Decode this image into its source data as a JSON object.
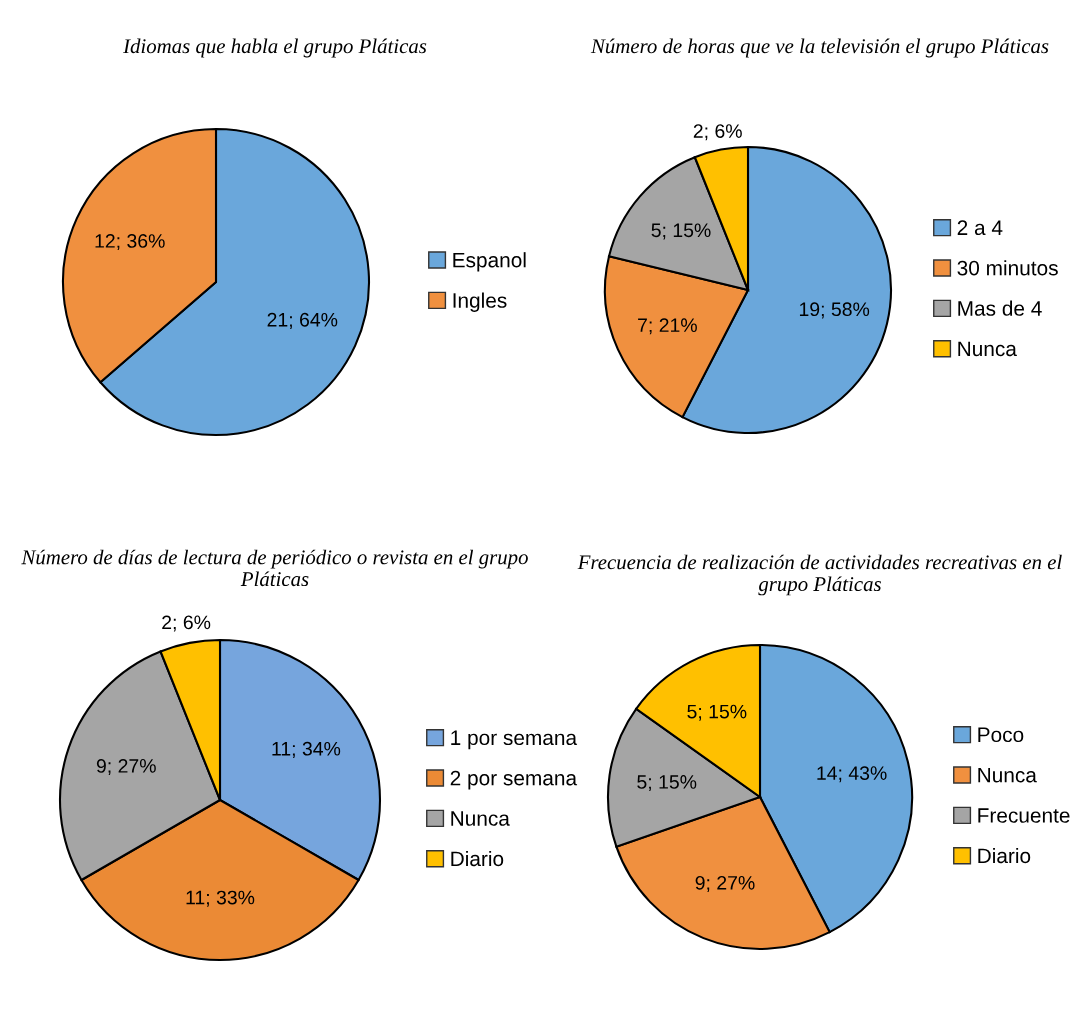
{
  "chart_data": [
    {
      "type": "pie",
      "title": "Idiomas que habla el grupo Pláticas",
      "categories": [
        "Espanol",
        "Ingles"
      ],
      "values": [
        21,
        12
      ],
      "value_labels": [
        "21; 64%",
        "12; 36%"
      ],
      "colors": [
        "#6aa7db",
        "#f0903f"
      ],
      "legend": "right"
    },
    {
      "type": "pie",
      "title": "Número de horas que ve la televisión el grupo Pláticas",
      "categories": [
        "2 a 4",
        "30 minutos",
        "Mas de 4",
        "Nunca"
      ],
      "values": [
        19,
        7,
        5,
        2
      ],
      "value_labels": [
        "19; 58%",
        "7; 21%",
        "5; 15%",
        "2; 6%"
      ],
      "colors": [
        "#6aa7db",
        "#f0903f",
        "#a5a5a5",
        "#ffc000"
      ],
      "legend": "right"
    },
    {
      "type": "pie",
      "title": "Número de días de lectura de periódico o revista en el grupo Pláticas",
      "categories": [
        "1 por semana",
        "2 por semana",
        "Nunca",
        "Diario"
      ],
      "values": [
        11,
        11,
        9,
        2
      ],
      "value_labels": [
        "11; 34%",
        "11; 33%",
        "9; 27%",
        "2; 6%"
      ],
      "colors": [
        "#76a5dd",
        "#eb8a35",
        "#a5a5a5",
        "#ffc000"
      ],
      "legend": "right"
    },
    {
      "type": "pie",
      "title": "Frecuencia de realización de actividades recreativas en el grupo Pláticas",
      "categories": [
        "Poco",
        "Nunca",
        "Frecuente",
        "Diario"
      ],
      "values": [
        14,
        9,
        5,
        5
      ],
      "value_labels": [
        "14; 43%",
        "9; 27%",
        "5; 15%",
        "5; 15%"
      ],
      "colors": [
        "#6aa7db",
        "#f0903f",
        "#a5a5a5",
        "#ffc000"
      ],
      "legend": "right"
    }
  ]
}
